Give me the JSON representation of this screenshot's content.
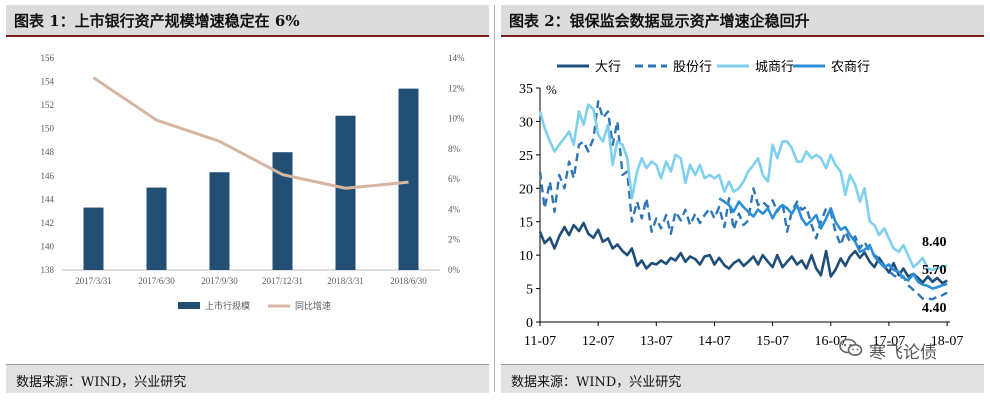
{
  "left": {
    "title": "图表 1：上市银行资产规模增速稳定在 6%",
    "source": "数据来源：WIND，兴业研究",
    "chart_data": {
      "type": "bar+line",
      "categories": [
        "2017/3/31",
        "2017/6/30",
        "2017/9/30",
        "2017/12/31",
        "2018/3/31",
        "2018/6/30"
      ],
      "series": [
        {
          "name": "上市行规模",
          "type": "bar",
          "axis": "left",
          "color": "#234e74",
          "values": [
            143.3,
            145.0,
            146.3,
            148.0,
            151.1,
            153.4
          ]
        },
        {
          "name": "同比增速",
          "type": "line",
          "axis": "right",
          "color": "#d6b5a3",
          "values": [
            12.7,
            9.9,
            8.5,
            6.3,
            5.4,
            5.8
          ]
        }
      ],
      "y_left": {
        "min": 138,
        "max": 156,
        "ticks": [
          "138",
          "140",
          "142",
          "144",
          "146",
          "148",
          "150",
          "152",
          "154",
          "156"
        ]
      },
      "y_right": {
        "min": 0,
        "max": 14,
        "ticks": [
          "0%",
          "2%",
          "4%",
          "6%",
          "8%",
          "10%",
          "12%",
          "14%"
        ]
      }
    }
  },
  "right": {
    "title": "图表 2：银保监会数据显示资产增速企稳回升",
    "source": "数据来源：WIND，兴业研究",
    "chart_data": {
      "type": "line",
      "unit_label": "%",
      "x_ticks": [
        "11-07",
        "12-07",
        "13-07",
        "14-07",
        "15-07",
        "16-07",
        "17-07",
        "18-07"
      ],
      "y": {
        "min": 0,
        "max": 35,
        "ticks": [
          "0",
          "5",
          "10",
          "15",
          "20",
          "25",
          "30",
          "35"
        ]
      },
      "annotations": [
        "8.40",
        "5.70",
        "4.40"
      ],
      "series": [
        {
          "name": "大行",
          "color": "#1f4e79",
          "dash": "",
          "width": 2.6,
          "x": [
            2011.5,
            2011.58,
            2011.67,
            2011.75,
            2011.83,
            2011.92,
            2012.0,
            2012.08,
            2012.17,
            2012.25,
            2012.33,
            2012.42,
            2012.5,
            2012.58,
            2012.67,
            2012.75,
            2012.83,
            2012.92,
            2013.0,
            2013.08,
            2013.17,
            2013.25,
            2013.33,
            2013.42,
            2013.5,
            2013.58,
            2013.67,
            2013.75,
            2013.83,
            2013.92,
            2014.0,
            2014.08,
            2014.17,
            2014.25,
            2014.33,
            2014.42,
            2014.5,
            2014.58,
            2014.67,
            2014.75,
            2014.83,
            2014.92,
            2015.0,
            2015.08,
            2015.17,
            2015.25,
            2015.33,
            2015.42,
            2015.5,
            2015.58,
            2015.67,
            2015.75,
            2015.83,
            2015.92,
            2016.0,
            2016.08,
            2016.17,
            2016.25,
            2016.33,
            2016.42,
            2016.5,
            2016.58,
            2016.67,
            2016.75,
            2016.83,
            2016.92,
            2017.0,
            2017.08,
            2017.17,
            2017.25,
            2017.33,
            2017.42,
            2017.5,
            2017.58,
            2017.67,
            2017.75,
            2017.83,
            2017.92,
            2018.0,
            2018.08,
            2018.17,
            2018.25,
            2018.33,
            2018.42,
            2018.5
          ],
          "values": [
            13.5,
            11.8,
            12.6,
            11.0,
            12.8,
            14.2,
            13.0,
            14.5,
            13.6,
            14.8,
            13.2,
            12.6,
            13.8,
            12.0,
            12.5,
            11.0,
            11.6,
            10.6,
            10.0,
            11.0,
            8.4,
            9.2,
            8.0,
            8.8,
            8.6,
            9.2,
            8.7,
            9.6,
            9.2,
            10.3,
            9.0,
            9.8,
            9.4,
            8.6,
            9.8,
            10.0,
            8.6,
            9.6,
            8.5,
            8.0,
            8.8,
            9.3,
            8.4,
            9.0,
            9.8,
            8.6,
            10.0,
            9.0,
            8.2,
            10.0,
            8.2,
            9.0,
            9.8,
            8.6,
            9.2,
            8.0,
            10.0,
            8.0,
            7.0,
            10.6,
            6.8,
            7.8,
            9.5,
            8.4,
            9.8,
            10.6,
            9.6,
            10.4,
            9.0,
            8.2,
            9.6,
            8.4,
            7.4,
            8.8,
            7.0,
            8.0,
            6.8,
            7.2,
            6.6,
            5.9,
            6.8,
            6.0,
            6.6,
            5.8,
            6.2
          ]
        },
        {
          "name": "股份行",
          "color": "#2e75b6",
          "dash": "8 5",
          "width": 2.4,
          "x": [
            2011.5,
            2011.58,
            2011.67,
            2011.75,
            2011.83,
            2011.92,
            2012.0,
            2012.08,
            2012.17,
            2012.25,
            2012.33,
            2012.42,
            2012.5,
            2012.58,
            2012.67,
            2012.75,
            2012.83,
            2012.92,
            2013.0,
            2013.08,
            2013.17,
            2013.25,
            2013.33,
            2013.42,
            2013.5,
            2013.58,
            2013.67,
            2013.75,
            2013.83,
            2013.92,
            2014.0,
            2014.08,
            2014.17,
            2014.25,
            2014.33,
            2014.42,
            2014.5,
            2014.58,
            2014.67,
            2014.75,
            2014.83,
            2014.92,
            2015.0,
            2015.08,
            2015.17,
            2015.25,
            2015.33,
            2015.42,
            2015.5,
            2015.58,
            2015.67,
            2015.75,
            2015.83,
            2015.92,
            2016.0,
            2016.08,
            2016.17,
            2016.25,
            2016.33,
            2016.42,
            2016.5,
            2016.58,
            2016.67,
            2016.75,
            2016.83,
            2016.92,
            2017.0,
            2017.08,
            2017.17,
            2017.25,
            2017.33,
            2017.42,
            2017.5,
            2017.58,
            2017.67,
            2017.75,
            2017.83,
            2017.92,
            2018.0,
            2018.08,
            2018.17,
            2018.25,
            2018.33,
            2018.42,
            2018.5
          ],
          "values": [
            22.5,
            17.0,
            21.0,
            16.5,
            22.0,
            20.0,
            24.0,
            21.5,
            26.5,
            27.0,
            25.5,
            27.5,
            33.0,
            30.5,
            31.5,
            26.5,
            30.0,
            22.0,
            22.5,
            15.0,
            18.0,
            15.5,
            18.5,
            13.5,
            15.5,
            14.0,
            16.0,
            13.2,
            16.5,
            15.2,
            16.8,
            14.5,
            16.2,
            14.8,
            16.0,
            17.0,
            15.5,
            17.2,
            14.2,
            18.5,
            13.8,
            16.2,
            14.5,
            15.2,
            20.0,
            17.5,
            18.0,
            17.2,
            18.2,
            16.5,
            17.8,
            13.5,
            16.5,
            18.0,
            16.8,
            17.2,
            14.5,
            12.5,
            15.0,
            17.0,
            16.5,
            13.5,
            11.5,
            13.5,
            12.0,
            12.8,
            11.0,
            12.0,
            10.5,
            10.0,
            9.5,
            8.2,
            7.6,
            7.0,
            6.5,
            6.8,
            5.5,
            4.8,
            4.2,
            3.5,
            3.5,
            3.4,
            3.8,
            4.0,
            4.4
          ]
        },
        {
          "name": "城商行",
          "color": "#7fd0ee",
          "dash": "",
          "width": 2.6,
          "x": [
            2011.5,
            2011.58,
            2011.67,
            2011.75,
            2011.83,
            2011.92,
            2012.0,
            2012.08,
            2012.17,
            2012.25,
            2012.33,
            2012.42,
            2012.5,
            2012.58,
            2012.67,
            2012.75,
            2012.83,
            2012.92,
            2013.0,
            2013.08,
            2013.17,
            2013.25,
            2013.33,
            2013.42,
            2013.5,
            2013.58,
            2013.67,
            2013.75,
            2013.83,
            2013.92,
            2014.0,
            2014.08,
            2014.17,
            2014.25,
            2014.33,
            2014.42,
            2014.5,
            2014.58,
            2014.67,
            2014.75,
            2014.83,
            2014.92,
            2015.0,
            2015.08,
            2015.17,
            2015.25,
            2015.33,
            2015.42,
            2015.5,
            2015.58,
            2015.67,
            2015.75,
            2015.83,
            2015.92,
            2016.0,
            2016.08,
            2016.17,
            2016.25,
            2016.33,
            2016.42,
            2016.5,
            2016.58,
            2016.67,
            2016.75,
            2016.83,
            2016.92,
            2017.0,
            2017.08,
            2017.17,
            2017.25,
            2017.33,
            2017.42,
            2017.5,
            2017.58,
            2017.67,
            2017.75,
            2017.83,
            2017.92,
            2018.0,
            2018.08,
            2018.17,
            2018.25,
            2018.33,
            2018.42,
            2018.5
          ],
          "values": [
            31.5,
            29.0,
            27.0,
            25.5,
            26.5,
            27.5,
            28.5,
            26.5,
            31.5,
            29.5,
            32.5,
            31.8,
            28.0,
            27.0,
            29.5,
            23.5,
            27.0,
            26.5,
            24.5,
            18.5,
            22.5,
            24.5,
            23.0,
            24.0,
            23.5,
            21.5,
            24.0,
            22.5,
            25.0,
            24.5,
            20.8,
            23.5,
            22.0,
            23.5,
            21.5,
            22.0,
            21.5,
            22.0,
            19.5,
            21.0,
            19.5,
            20.0,
            21.0,
            22.5,
            23.5,
            24.5,
            22.0,
            21.0,
            26.5,
            24.5,
            27.0,
            27.0,
            26.0,
            24.0,
            24.0,
            25.5,
            24.5,
            25.0,
            24.5,
            23.0,
            25.0,
            23.5,
            22.5,
            19.0,
            22.0,
            20.5,
            18.0,
            20.0,
            15.0,
            14.5,
            13.0,
            14.0,
            12.5,
            11.0,
            10.5,
            11.5,
            10.0,
            8.2,
            8.8,
            9.6,
            8.0,
            7.8,
            8.0,
            8.3,
            8.4
          ]
        },
        {
          "name": "农商行",
          "color": "#2c8fd6",
          "dash": "",
          "width": 2.6,
          "x": [
            2014.58,
            2014.67,
            2014.75,
            2014.83,
            2014.92,
            2015.0,
            2015.08,
            2015.17,
            2015.25,
            2015.33,
            2015.42,
            2015.5,
            2015.58,
            2015.67,
            2015.75,
            2015.83,
            2015.92,
            2016.0,
            2016.08,
            2016.17,
            2016.25,
            2016.33,
            2016.42,
            2016.5,
            2016.58,
            2016.67,
            2016.75,
            2016.83,
            2016.92,
            2017.0,
            2017.08,
            2017.17,
            2017.25,
            2017.33,
            2017.42,
            2017.5,
            2017.58,
            2017.67,
            2017.75,
            2017.83,
            2017.92,
            2018.0,
            2018.08,
            2018.17,
            2018.25,
            2018.33,
            2018.42,
            2018.5
          ],
          "values": [
            18.5,
            18.0,
            17.5,
            16.5,
            18.0,
            17.2,
            16.5,
            15.8,
            16.8,
            16.2,
            17.0,
            15.5,
            16.8,
            17.5,
            17.0,
            16.2,
            17.5,
            15.5,
            14.5,
            15.2,
            16.0,
            14.0,
            15.5,
            17.0,
            15.0,
            13.8,
            14.2,
            13.0,
            12.0,
            10.5,
            10.8,
            11.5,
            9.8,
            9.0,
            8.2,
            8.6,
            7.8,
            7.5,
            6.6,
            6.2,
            7.2,
            6.0,
            5.6,
            5.4,
            5.0,
            5.2,
            5.5,
            5.7
          ]
        }
      ]
    }
  },
  "watermark": "寒飞论债"
}
